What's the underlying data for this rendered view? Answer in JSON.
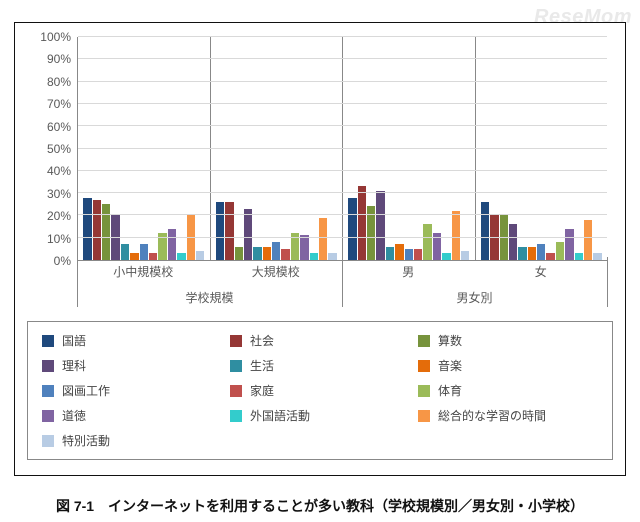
{
  "watermark": "ReseMom",
  "caption": "図 7-1　インターネットを利用することが多い教科（学校規模別／男女別・小学校）",
  "chart": {
    "type": "bar",
    "ymax": 100,
    "ytick_step": 10,
    "ysuffix": "%",
    "background": "#ffffff",
    "grid_color": "#d9d9d9",
    "axis_color": "#888888",
    "tick_font_color": "#595959",
    "tick_fontsize": 12,
    "group_level1": [
      "小中規模校",
      "大規模校",
      "男",
      "女"
    ],
    "group_level2": [
      {
        "label": "学校規模",
        "span": 2
      },
      {
        "label": "男女別",
        "span": 2
      }
    ],
    "series": [
      {
        "key": "kokugo",
        "label": "国語",
        "color": "#1f497d"
      },
      {
        "key": "shakai",
        "label": "社会",
        "color": "#953735"
      },
      {
        "key": "sansu",
        "label": "算数",
        "color": "#77933c"
      },
      {
        "key": "rika",
        "label": "理科",
        "color": "#5f497a"
      },
      {
        "key": "seikatsu",
        "label": "生活",
        "color": "#2f8ea1"
      },
      {
        "key": "ongaku",
        "label": "音楽",
        "color": "#e46c0a"
      },
      {
        "key": "zukou",
        "label": "図画工作",
        "color": "#4f81bd"
      },
      {
        "key": "katei",
        "label": "家庭",
        "color": "#c0504d"
      },
      {
        "key": "taiiku",
        "label": "体育",
        "color": "#9bbb59"
      },
      {
        "key": "doutoku",
        "label": "道徳",
        "color": "#8064a2"
      },
      {
        "key": "gaikokugo",
        "label": "外国語活動",
        "color": "#33cccc"
      },
      {
        "key": "sougou",
        "label": "総合的な学習の時間",
        "color": "#f79646"
      },
      {
        "key": "tokubetsu",
        "label": "特別活動",
        "color": "#b8cce4"
      }
    ],
    "data": {
      "kokugo": [
        28,
        26,
        28,
        26
      ],
      "shakai": [
        27,
        26,
        33,
        20
      ],
      "sansu": [
        25,
        6,
        24,
        20
      ],
      "rika": [
        20,
        23,
        31,
        16
      ],
      "seikatsu": [
        7,
        6,
        6,
        6
      ],
      "ongaku": [
        3,
        6,
        7,
        6
      ],
      "zukou": [
        7,
        8,
        5,
        7
      ],
      "katei": [
        3,
        5,
        5,
        3
      ],
      "taiiku": [
        12,
        12,
        16,
        8
      ],
      "doutoku": [
        14,
        11,
        12,
        14
      ],
      "gaikokugo": [
        3,
        3,
        3,
        3
      ],
      "sougou": [
        20,
        19,
        22,
        18
      ],
      "tokubetsu": [
        4,
        3,
        4,
        3
      ]
    }
  }
}
